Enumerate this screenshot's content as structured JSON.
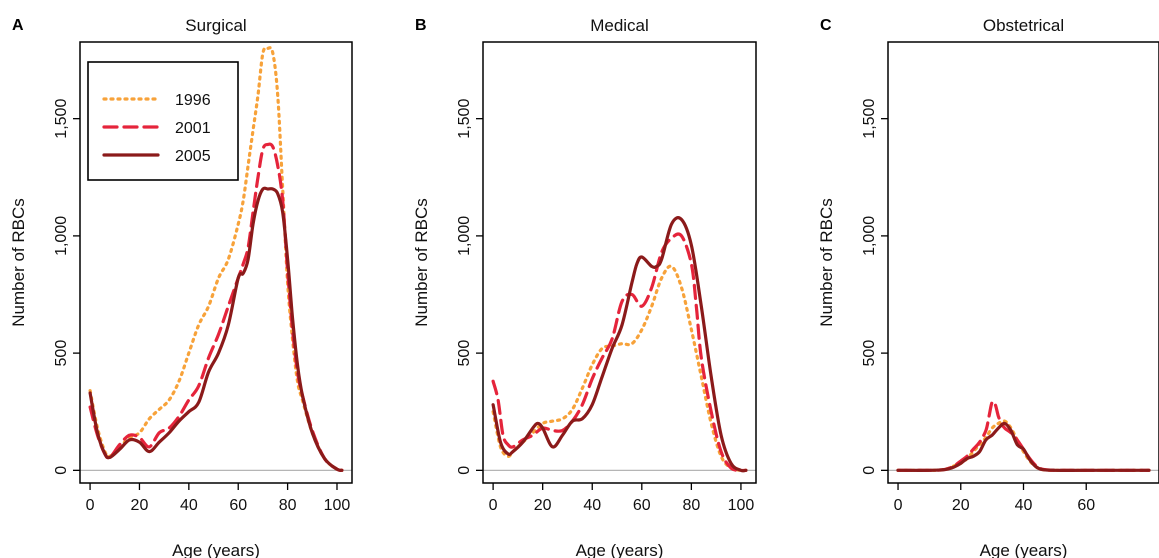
{
  "figure": {
    "series_styles": {
      "1996": {
        "color": "#f7a23a",
        "dash": "2,5",
        "width": 3.2
      },
      "2001": {
        "color": "#e5243b",
        "dash": "13,7",
        "width": 3.2
      },
      "2005": {
        "color": "#8b1a1a",
        "dash": "",
        "width": 3.2
      }
    },
    "legend": {
      "entries": [
        "1996",
        "2001",
        "2005"
      ]
    }
  },
  "chart_data": [
    {
      "type": "line",
      "panel": "A",
      "title": "Surgical",
      "xlabel": "Age (years)",
      "ylabel": "Number of RBCs",
      "xlim": [
        0,
        102
      ],
      "ylim": [
        0,
        1800
      ],
      "xticks": [
        0,
        20,
        40,
        60,
        80,
        100
      ],
      "yticks": [
        0,
        500,
        1000,
        1500
      ],
      "ytick_labels": [
        "0",
        "500",
        "1,000",
        "1,500"
      ],
      "baseline": 0,
      "legend": "top-left",
      "series": [
        {
          "name": "1996",
          "x": [
            0,
            3,
            6,
            8,
            12,
            16,
            20,
            24,
            28,
            32,
            36,
            40,
            44,
            48,
            52,
            56,
            60,
            62,
            64,
            66,
            68,
            70,
            72,
            74,
            76,
            78,
            80,
            82,
            84,
            86,
            90,
            95,
            100,
            102
          ],
          "y": [
            340,
            180,
            80,
            60,
            100,
            140,
            160,
            220,
            260,
            300,
            380,
            500,
            620,
            700,
            820,
            900,
            1050,
            1150,
            1300,
            1450,
            1600,
            1780,
            1800,
            1780,
            1600,
            1200,
            800,
            560,
            380,
            300,
            160,
            50,
            5,
            0
          ]
        },
        {
          "name": "2001",
          "x": [
            0,
            3,
            6,
            8,
            12,
            16,
            20,
            24,
            28,
            32,
            36,
            40,
            44,
            48,
            52,
            56,
            60,
            62,
            64,
            66,
            68,
            70,
            72,
            74,
            76,
            78,
            80,
            82,
            84,
            86,
            90,
            95,
            100,
            102
          ],
          "y": [
            270,
            150,
            70,
            55,
            110,
            150,
            140,
            100,
            160,
            180,
            230,
            300,
            360,
            480,
            580,
            700,
            820,
            880,
            950,
            1100,
            1250,
            1370,
            1390,
            1380,
            1300,
            1150,
            850,
            600,
            420,
            320,
            170,
            50,
            5,
            0
          ]
        },
        {
          "name": "2005",
          "x": [
            0,
            3,
            6,
            8,
            12,
            16,
            20,
            24,
            28,
            32,
            36,
            40,
            44,
            48,
            52,
            56,
            60,
            62,
            64,
            66,
            68,
            70,
            72,
            74,
            76,
            78,
            80,
            82,
            84,
            86,
            90,
            95,
            100,
            102
          ],
          "y": [
            330,
            160,
            70,
            55,
            90,
            130,
            120,
            80,
            120,
            160,
            210,
            250,
            290,
            420,
            500,
            620,
            820,
            840,
            900,
            1050,
            1150,
            1200,
            1200,
            1200,
            1180,
            1100,
            900,
            650,
            450,
            320,
            160,
            50,
            5,
            0
          ]
        }
      ]
    },
    {
      "type": "line",
      "panel": "B",
      "title": "Medical",
      "xlabel": "Age (years)",
      "ylabel": "Number of RBCs",
      "xlim": [
        0,
        102
      ],
      "ylim": [
        0,
        1800
      ],
      "xticks": [
        0,
        20,
        40,
        60,
        80,
        100
      ],
      "yticks": [
        0,
        500,
        1000,
        1500
      ],
      "ytick_labels": [
        "0",
        "500",
        "1,000",
        "1,500"
      ],
      "baseline": 0,
      "series": [
        {
          "name": "1996",
          "x": [
            0,
            3,
            6,
            8,
            12,
            16,
            20,
            24,
            28,
            32,
            36,
            40,
            44,
            48,
            52,
            56,
            60,
            64,
            68,
            72,
            76,
            80,
            84,
            88,
            92,
            96,
            100,
            102
          ],
          "y": [
            250,
            100,
            60,
            80,
            120,
            160,
            200,
            210,
            220,
            260,
            350,
            450,
            520,
            530,
            540,
            540,
            600,
            700,
            820,
            870,
            780,
            600,
            400,
            200,
            60,
            10,
            0,
            0
          ]
        },
        {
          "name": "2001",
          "x": [
            0,
            2,
            4,
            6,
            8,
            12,
            16,
            20,
            24,
            28,
            32,
            36,
            40,
            44,
            48,
            52,
            56,
            60,
            64,
            68,
            72,
            76,
            80,
            82,
            84,
            88,
            92,
            96,
            100,
            102
          ],
          "y": [
            380,
            300,
            150,
            110,
            100,
            130,
            150,
            180,
            170,
            170,
            210,
            280,
            390,
            480,
            560,
            720,
            750,
            700,
            780,
            930,
            990,
            1000,
            880,
            700,
            480,
            250,
            80,
            10,
            0,
            0
          ]
        },
        {
          "name": "2005",
          "x": [
            0,
            3,
            6,
            8,
            12,
            16,
            18,
            20,
            24,
            28,
            32,
            36,
            40,
            44,
            48,
            52,
            56,
            58,
            60,
            64,
            66,
            68,
            72,
            76,
            80,
            84,
            88,
            92,
            96,
            100,
            102
          ],
          "y": [
            280,
            120,
            70,
            80,
            120,
            180,
            200,
            180,
            100,
            150,
            210,
            220,
            280,
            400,
            520,
            620,
            800,
            880,
            910,
            870,
            870,
            900,
            1050,
            1070,
            960,
            700,
            400,
            150,
            30,
            0,
            0
          ]
        }
      ]
    },
    {
      "type": "line",
      "panel": "C",
      "title": "Obstetrical",
      "xlabel": "Age (years)",
      "ylabel": "Number of RBCs",
      "xlim": [
        0,
        80
      ],
      "ylim": [
        0,
        1800
      ],
      "xticks": [
        0,
        20,
        40,
        60
      ],
      "yticks": [
        0,
        500,
        1000,
        1500
      ],
      "ytick_labels": [
        "0",
        "500",
        "1,000",
        "1,500"
      ],
      "baseline": 0,
      "series": [
        {
          "name": "1996",
          "x": [
            0,
            10,
            14,
            16,
            18,
            20,
            22,
            24,
            26,
            28,
            30,
            32,
            34,
            36,
            38,
            40,
            42,
            44,
            46,
            50,
            60,
            80
          ],
          "y": [
            0,
            0,
            2,
            8,
            20,
            30,
            50,
            80,
            110,
            140,
            180,
            200,
            210,
            180,
            130,
            80,
            40,
            15,
            3,
            0,
            0,
            0
          ]
        },
        {
          "name": "2001",
          "x": [
            0,
            10,
            14,
            16,
            18,
            20,
            22,
            24,
            26,
            28,
            29,
            30,
            31,
            32,
            33,
            34,
            36,
            38,
            40,
            42,
            44,
            46,
            50,
            60,
            80
          ],
          "y": [
            0,
            0,
            2,
            8,
            20,
            40,
            60,
            90,
            120,
            170,
            230,
            290,
            280,
            230,
            200,
            180,
            160,
            130,
            90,
            50,
            20,
            5,
            0,
            0,
            0
          ]
        },
        {
          "name": "2005",
          "x": [
            0,
            10,
            14,
            16,
            18,
            20,
            22,
            24,
            26,
            28,
            30,
            32,
            34,
            36,
            38,
            40,
            42,
            44,
            46,
            50,
            60,
            80
          ],
          "y": [
            0,
            0,
            2,
            6,
            15,
            30,
            50,
            60,
            80,
            130,
            150,
            180,
            200,
            170,
            110,
            90,
            45,
            15,
            3,
            0,
            0,
            0
          ]
        }
      ]
    }
  ]
}
